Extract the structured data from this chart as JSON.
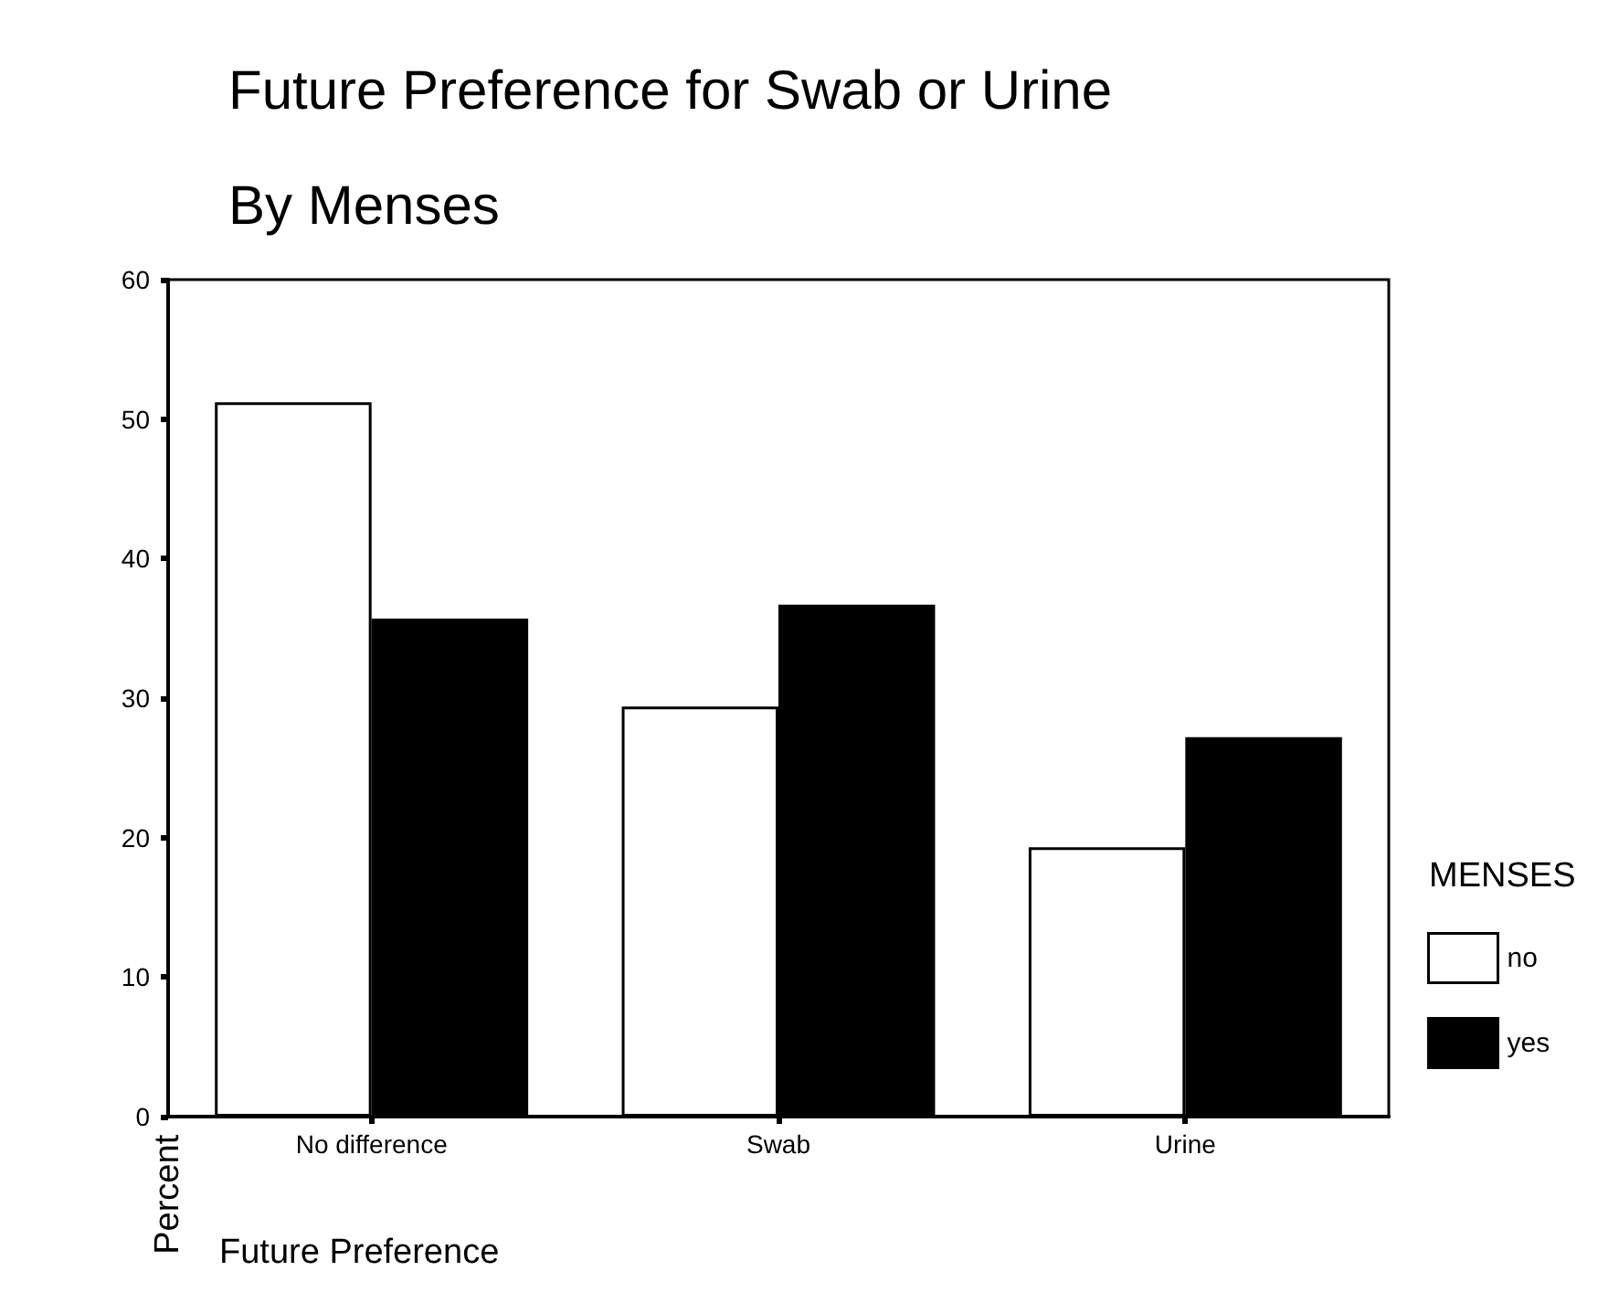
{
  "chart_data": {
    "type": "bar",
    "title": "Future Preference for Swab or Urine",
    "subtitle": "By Menses",
    "xlabel": "Future Preference",
    "ylabel": "Percent",
    "legend_title": "MENSES",
    "categories": [
      "No difference",
      "Swab",
      "Urine"
    ],
    "series": [
      {
        "name": "no",
        "color": "#ffffff",
        "values": [
          51.2,
          29.4,
          19.3
        ]
      },
      {
        "name": "yes",
        "color": "#000000",
        "values": [
          35.7,
          36.7,
          27.2
        ]
      }
    ],
    "ylim": [
      0,
      60
    ],
    "yticks": [
      0,
      10,
      20,
      30,
      40,
      50,
      60
    ],
    "grid": false,
    "legend": "right"
  }
}
